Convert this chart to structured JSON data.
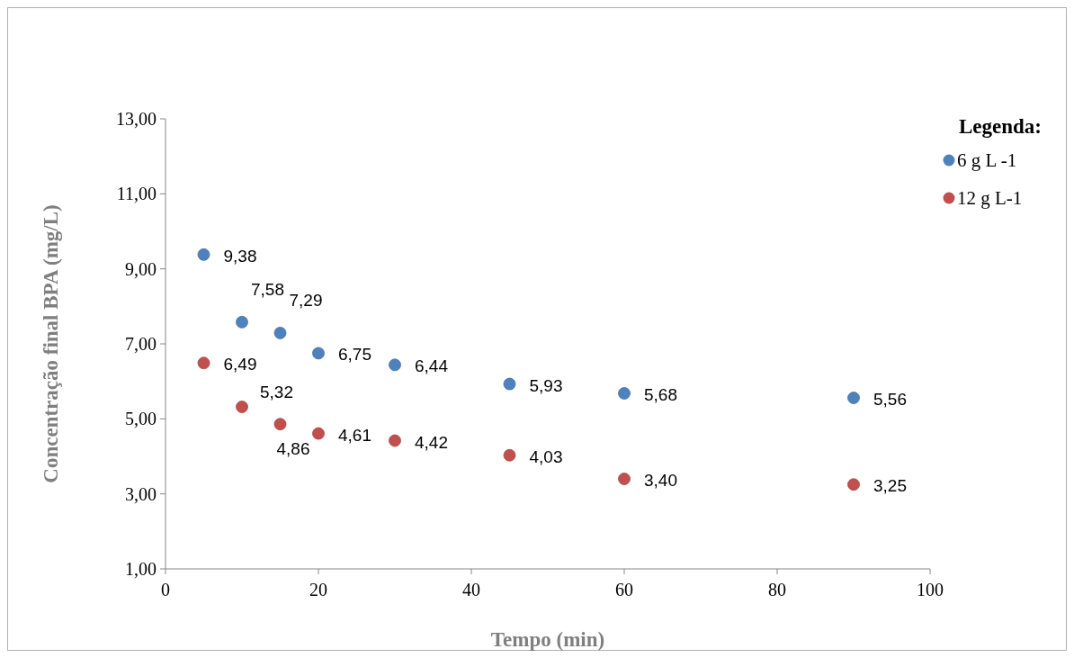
{
  "chart_data": {
    "type": "scatter",
    "xlabel": "Tempo (min)",
    "ylabel": "Concentração final BPA (mg/L)",
    "legend_title": "Legenda:",
    "legend": "top right",
    "marker": "circle",
    "grid": false,
    "x": [
      5,
      10,
      15,
      20,
      30,
      45,
      60,
      90
    ],
    "xlim": [
      0,
      100
    ],
    "xticks": [
      0,
      20,
      40,
      60,
      80,
      100
    ],
    "ylim": [
      1,
      13
    ],
    "yticks": [
      {
        "value": 1,
        "label": "1,00"
      },
      {
        "value": 3,
        "label": "3,00"
      },
      {
        "value": 5,
        "label": "5,00"
      },
      {
        "value": 7,
        "label": "7,00"
      },
      {
        "value": 9,
        "label": "9,00"
      },
      {
        "value": 11,
        "label": "11,00"
      },
      {
        "value": 13,
        "label": "13,00"
      }
    ],
    "series": [
      {
        "name": "6 g L -1",
        "color": "#4f81bd",
        "values": [
          9.38,
          7.58,
          7.29,
          6.75,
          6.44,
          5.93,
          5.68,
          5.56
        ],
        "value_labels": [
          "9,38",
          "7,58",
          "7,29",
          "6,75",
          "6,44",
          "5,93",
          "5,68",
          "5,56"
        ]
      },
      {
        "name": "12 g L-1",
        "color": "#c0504d",
        "values": [
          6.49,
          5.32,
          4.86,
          4.61,
          4.42,
          4.03,
          3.4,
          3.25
        ],
        "value_labels": [
          "6,49",
          "5,32",
          "4,86",
          "4,61",
          "4,42",
          "4,03",
          "3,40",
          "3,25"
        ]
      }
    ]
  }
}
